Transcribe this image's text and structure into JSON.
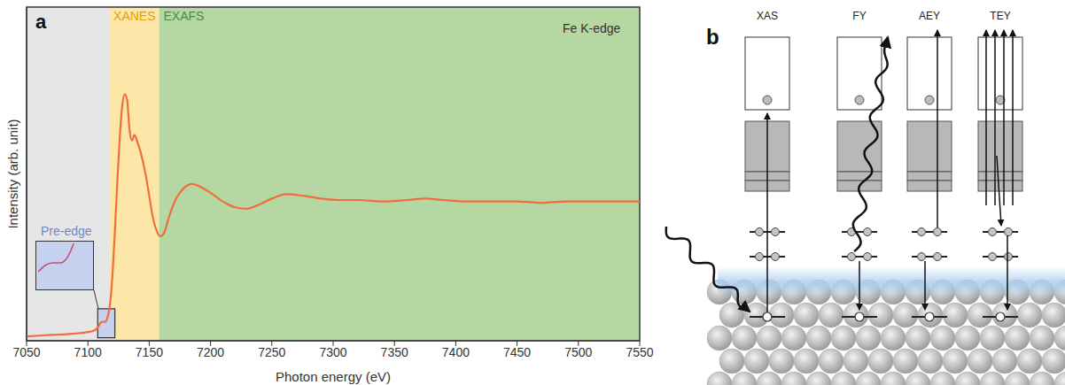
{
  "chart_data": {
    "type": "line",
    "panel_label": "a",
    "x_label": "Photon energy (eV)",
    "y_label": "Intensity (arb. unit)",
    "annotations": [
      "Fe K-edge"
    ],
    "color": "#f26d3d",
    "tick_labels": "x",
    "xlim": [
      7050,
      7550
    ],
    "xticks": [
      7050,
      7100,
      7150,
      7200,
      7250,
      7300,
      7350,
      7400,
      7450,
      7500,
      7550
    ],
    "ylim": [
      0,
      2.3
    ],
    "regions": [
      {
        "from": 7050,
        "to": 7118,
        "color": "#e6e6e6"
      },
      {
        "label": "XANES",
        "from": 7118,
        "to": 7158,
        "color": "#fde7a8"
      },
      {
        "label": "EXAFS",
        "from": 7158,
        "to": 7550,
        "color": "#b5d8a2"
      }
    ],
    "inset": {
      "label": "Pre-edge",
      "xlim": [
        7108,
        7122
      ],
      "ylim": [
        0.02,
        0.22
      ],
      "color": "#c6d0ef"
    },
    "x": [
      7050,
      7070,
      7090,
      7100,
      7105,
      7108,
      7110,
      7112,
      7114,
      7116,
      7118,
      7120,
      7122,
      7124,
      7126,
      7128,
      7130,
      7132,
      7134,
      7136,
      7138,
      7140,
      7143,
      7147,
      7150,
      7153,
      7156,
      7159,
      7162,
      7166,
      7172,
      7178,
      7185,
      7192,
      7200,
      7210,
      7220,
      7230,
      7240,
      7250,
      7262,
      7275,
      7290,
      7305,
      7320,
      7340,
      7360,
      7375,
      7390,
      7410,
      7430,
      7450,
      7470,
      7490,
      7510,
      7530,
      7550
    ],
    "values": [
      0.03,
      0.04,
      0.05,
      0.06,
      0.07,
      0.09,
      0.12,
      0.13,
      0.13,
      0.16,
      0.25,
      0.45,
      0.75,
      1.1,
      1.4,
      1.62,
      1.7,
      1.66,
      1.45,
      1.38,
      1.42,
      1.38,
      1.3,
      1.15,
      1.0,
      0.85,
      0.76,
      0.72,
      0.74,
      0.85,
      0.98,
      1.05,
      1.08,
      1.06,
      1.02,
      0.96,
      0.92,
      0.91,
      0.94,
      0.98,
      1.01,
      1.0,
      0.98,
      0.97,
      0.97,
      0.96,
      0.97,
      0.98,
      0.97,
      0.96,
      0.96,
      0.96,
      0.95,
      0.96,
      0.96,
      0.96,
      0.96
    ]
  },
  "diagram": {
    "panel_label": "b",
    "columns": [
      "XAS",
      "FY",
      "AEY",
      "TEY"
    ]
  }
}
